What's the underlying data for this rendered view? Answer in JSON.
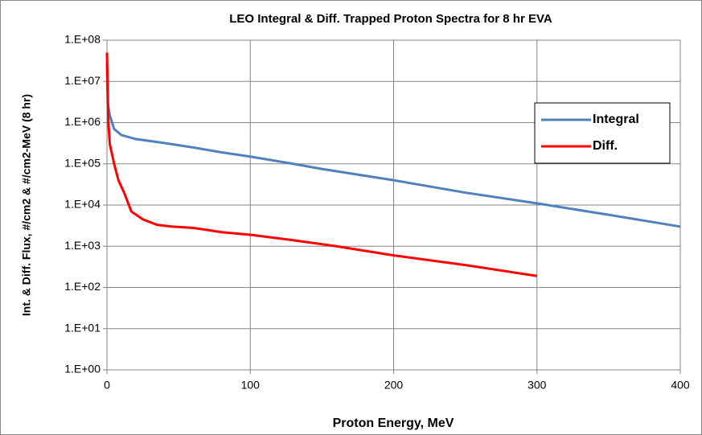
{
  "chart_data": {
    "type": "line",
    "title": "LEO Integral & Diff. Trapped Proton Spectra for 8 hr EVA",
    "x_label": "Proton Energy, MeV",
    "y_label": "Int. & Diff. Flux, #/cm2 & #/cm2-MeV (8 hr)",
    "xlim": [
      0,
      400
    ],
    "xticks": [
      0,
      100,
      200,
      300,
      400
    ],
    "ylim": [
      1,
      100000000
    ],
    "log_y": true,
    "yticks": [
      {
        "value": 1,
        "label": "1.E+00"
      },
      {
        "value": 10,
        "label": "1.E+01"
      },
      {
        "value": 100,
        "label": "1.E+02"
      },
      {
        "value": 1000,
        "label": "1.E+03"
      },
      {
        "value": 10000,
        "label": "1.E+04"
      },
      {
        "value": 100000,
        "label": "1.E+05"
      },
      {
        "value": 1000000,
        "label": "1.E+06"
      },
      {
        "value": 10000000,
        "label": "1.E+07"
      },
      {
        "value": 100000000,
        "label": "1.E+08"
      }
    ],
    "grid": true,
    "legend": "right",
    "series": [
      {
        "name": "Integral",
        "color": "#4f81bd",
        "x": [
          0,
          0.5,
          2,
          5,
          10,
          20,
          40,
          60,
          80,
          100,
          130,
          150,
          200,
          250,
          300,
          350,
          400
        ],
        "values": [
          30000000,
          3000000,
          1500000,
          700000,
          500000,
          400000,
          320000,
          250000,
          190000,
          150000,
          100000,
          75000,
          40000,
          20000,
          11000,
          5800,
          3000
        ]
      },
      {
        "name": "Diff.",
        "color": "#ff0000",
        "x": [
          0,
          1,
          2,
          5,
          8,
          12,
          17,
          25,
          35,
          45,
          60,
          80,
          100,
          130,
          160,
          200,
          250,
          300
        ],
        "values": [
          50000000,
          1000000,
          300000,
          100000,
          40000,
          20000,
          7000,
          4500,
          3300,
          3000,
          2800,
          2200,
          1900,
          1400,
          1000,
          600,
          350,
          190
        ]
      }
    ]
  }
}
